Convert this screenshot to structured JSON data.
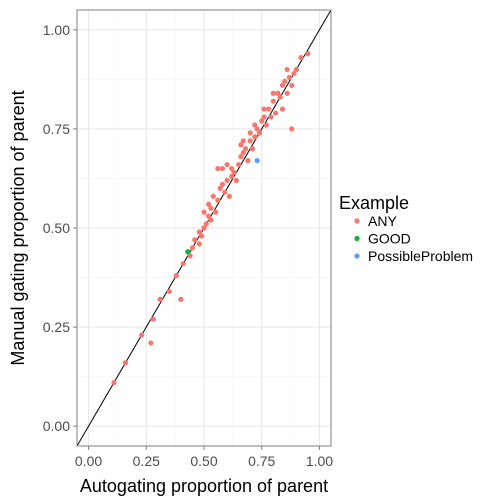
{
  "chart_data": {
    "type": "scatter",
    "title": "",
    "xlabel": "Autogating proportion of parent",
    "ylabel": "Manual gating proportion of parent",
    "xlim": [
      -0.05,
      1.05
    ],
    "ylim": [
      -0.05,
      1.05
    ],
    "x_ticks": [
      0.0,
      0.25,
      0.5,
      0.75,
      1.0
    ],
    "x_tick_labels": [
      "0.00",
      "0.25",
      "0.50",
      "0.75",
      "1.00"
    ],
    "y_ticks": [
      0.0,
      0.25,
      0.5,
      0.75,
      1.0
    ],
    "y_tick_labels": [
      "0.00",
      "0.25",
      "0.50",
      "0.75",
      "1.00"
    ],
    "grid": true,
    "reference_line": {
      "slope": 1,
      "intercept": 0
    },
    "legend": {
      "title": "Example",
      "position": "right",
      "entries": [
        "ANY",
        "GOOD",
        "PossibleProblem"
      ]
    },
    "series": [
      {
        "name": "ANY",
        "color": "#F8766D",
        "points": [
          [
            0.11,
            0.11
          ],
          [
            0.16,
            0.16
          ],
          [
            0.23,
            0.23
          ],
          [
            0.27,
            0.21
          ],
          [
            0.28,
            0.27
          ],
          [
            0.31,
            0.32
          ],
          [
            0.35,
            0.34
          ],
          [
            0.38,
            0.38
          ],
          [
            0.4,
            0.32
          ],
          [
            0.41,
            0.41
          ],
          [
            0.44,
            0.43
          ],
          [
            0.45,
            0.45
          ],
          [
            0.46,
            0.47
          ],
          [
            0.48,
            0.46
          ],
          [
            0.49,
            0.48
          ],
          [
            0.48,
            0.49
          ],
          [
            0.5,
            0.5
          ],
          [
            0.51,
            0.51
          ],
          [
            0.52,
            0.53
          ],
          [
            0.53,
            0.55
          ],
          [
            0.55,
            0.54
          ],
          [
            0.54,
            0.58
          ],
          [
            0.56,
            0.57
          ],
          [
            0.57,
            0.6
          ],
          [
            0.58,
            0.61
          ],
          [
            0.59,
            0.59
          ],
          [
            0.6,
            0.62
          ],
          [
            0.61,
            0.58
          ],
          [
            0.62,
            0.63
          ],
          [
            0.63,
            0.64
          ],
          [
            0.64,
            0.62
          ],
          [
            0.65,
            0.66
          ],
          [
            0.66,
            0.68
          ],
          [
            0.67,
            0.69
          ],
          [
            0.68,
            0.7
          ],
          [
            0.69,
            0.67
          ],
          [
            0.7,
            0.72
          ],
          [
            0.71,
            0.7
          ],
          [
            0.72,
            0.73
          ],
          [
            0.73,
            0.75
          ],
          [
            0.74,
            0.74
          ],
          [
            0.75,
            0.77
          ],
          [
            0.76,
            0.78
          ],
          [
            0.77,
            0.76
          ],
          [
            0.78,
            0.8
          ],
          [
            0.79,
            0.78
          ],
          [
            0.8,
            0.82
          ],
          [
            0.81,
            0.79
          ],
          [
            0.82,
            0.84
          ],
          [
            0.83,
            0.83
          ],
          [
            0.84,
            0.86
          ],
          [
            0.85,
            0.87
          ],
          [
            0.86,
            0.84
          ],
          [
            0.87,
            0.88
          ],
          [
            0.88,
            0.75
          ],
          [
            0.88,
            0.86
          ],
          [
            0.89,
            0.89
          ],
          [
            0.9,
            0.9
          ],
          [
            0.92,
            0.93
          ],
          [
            0.95,
            0.94
          ],
          [
            0.56,
            0.65
          ],
          [
            0.58,
            0.65
          ],
          [
            0.62,
            0.65
          ],
          [
            0.66,
            0.71
          ],
          [
            0.7,
            0.74
          ],
          [
            0.72,
            0.76
          ],
          [
            0.76,
            0.8
          ],
          [
            0.8,
            0.84
          ],
          [
            0.84,
            0.8
          ],
          [
            0.86,
            0.9
          ],
          [
            0.52,
            0.56
          ],
          [
            0.5,
            0.54
          ],
          [
            0.53,
            0.52
          ],
          [
            0.6,
            0.66
          ],
          [
            0.67,
            0.72
          ]
        ]
      },
      {
        "name": "GOOD",
        "color": "#00BA38",
        "points": [
          [
            0.43,
            0.44
          ]
        ]
      },
      {
        "name": "PossibleProblem",
        "color": "#619CFF",
        "points": [
          [
            0.73,
            0.67
          ]
        ]
      }
    ]
  }
}
